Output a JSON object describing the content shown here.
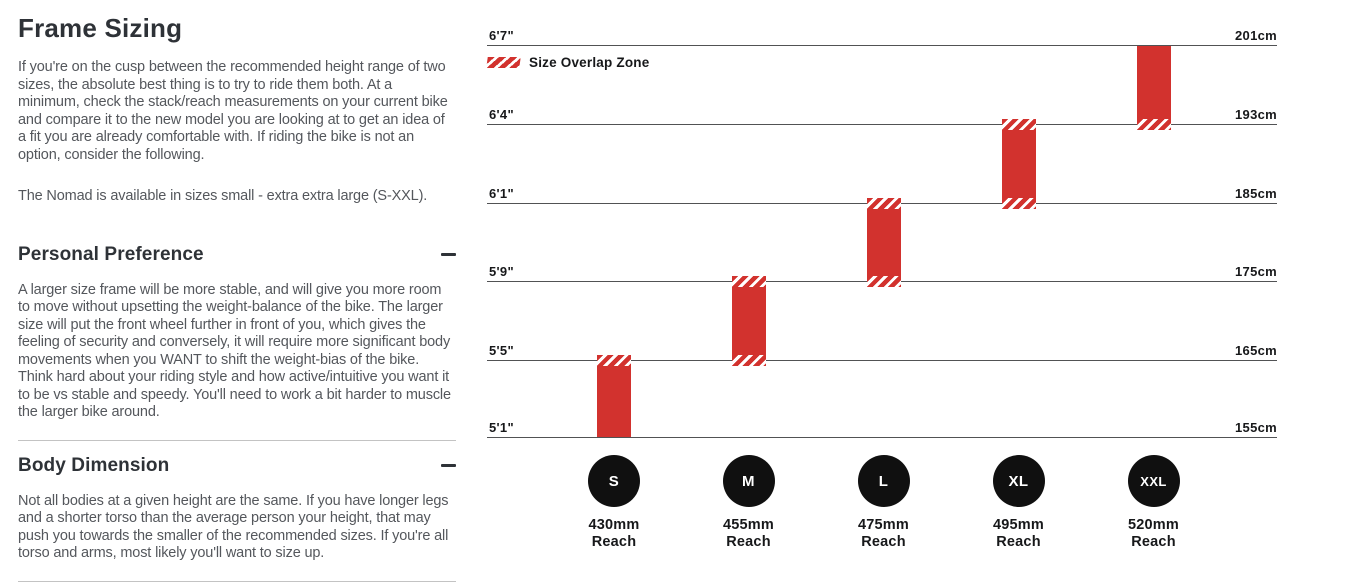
{
  "page": {
    "title": "Frame Sizing",
    "intro_p1": "If you're on the cusp between the recommended height range of two sizes, the absolute best thing is to try to ride them both. At a minimum, check the stack/reach measurements on your current bike and compare it to the new model you are looking at to get an idea of a fit you are already comfortable with. If riding the bike is not an option, consider the following.",
    "intro_p2": "The Nomad is available in sizes small - extra extra large (S-XXL).",
    "sections": [
      {
        "heading": "Personal Preference",
        "toggle_state": "expanded",
        "body": "A larger size frame will be more stable, and will give you more room to move without upsetting the weight-balance of the bike. The larger size will put the front wheel further in front of you, which gives the feeling of security and conversely, it will require more significant body movements when you WANT to shift the weight-bias of the bike. Think hard about your riding style and how active/intuitive you want it to be vs stable and speedy. You'll need to work a bit harder to muscle the larger bike around."
      },
      {
        "heading": "Body Dimension",
        "toggle_state": "expanded",
        "body": "Not all bodies at a given height are the same. If you have longer legs and a shorter torso than the average person your height, that may push you towards the smaller of the recommended sizes. If you're all torso and arms, most likely you'll want to size up."
      }
    ]
  },
  "chart_data": {
    "type": "bar",
    "subtype": "vertical-range-bars-rider-height",
    "title": "",
    "legend": {
      "label": "Size Overlap Zone",
      "swatch": "red-diagonal-hatch"
    },
    "axis_lines": [
      {
        "height_ft": "6'7\"",
        "height_cm": "201cm"
      },
      {
        "height_ft": "6'4\"",
        "height_cm": "193cm"
      },
      {
        "height_ft": "6'1\"",
        "height_cm": "185cm"
      },
      {
        "height_ft": "5'9\"",
        "height_cm": "175cm"
      },
      {
        "height_ft": "5'5\"",
        "height_cm": "165cm"
      },
      {
        "height_ft": "5'1\"",
        "height_cm": "155cm"
      }
    ],
    "sizes": [
      {
        "label": "S",
        "reach_value": "430mm",
        "reach_word": "Reach",
        "height_range": "5'1\"-5'5\"",
        "height_range_cm": [
          155,
          165
        ],
        "top_line": 4,
        "bottom_line": 5,
        "overlap_top": true,
        "overlap_bottom": false
      },
      {
        "label": "M",
        "reach_value": "455mm",
        "reach_word": "Reach",
        "height_range": "5'5\"-5'9\"",
        "height_range_cm": [
          165,
          175
        ],
        "top_line": 3,
        "bottom_line": 4,
        "overlap_top": true,
        "overlap_bottom": true
      },
      {
        "label": "L",
        "reach_value": "475mm",
        "reach_word": "Reach",
        "height_range": "5'9\"-6'1\"",
        "height_range_cm": [
          175,
          185
        ],
        "top_line": 2,
        "bottom_line": 3,
        "overlap_top": true,
        "overlap_bottom": true
      },
      {
        "label": "XL",
        "reach_value": "495mm",
        "reach_word": "Reach",
        "height_range": "6'1\"-6'4\"",
        "height_range_cm": [
          185,
          193
        ],
        "top_line": 1,
        "bottom_line": 2,
        "overlap_top": true,
        "overlap_bottom": true
      },
      {
        "label": "XXL",
        "reach_value": "520mm",
        "reach_word": "Reach",
        "height_range": "6'4\"-6'7\"",
        "height_range_cm": [
          193,
          201
        ],
        "top_line": 0,
        "bottom_line": 1,
        "overlap_top": false,
        "overlap_bottom": true
      }
    ],
    "colors": {
      "bar_red": "#d2322e",
      "gridline": "#515254",
      "label_text": "#17181a",
      "circle_black": "#101010"
    },
    "layout_hints": {
      "grid": "horizontal-lines-only",
      "legend_position": "top-left",
      "bars_sit_between_height_lines": true
    }
  }
}
